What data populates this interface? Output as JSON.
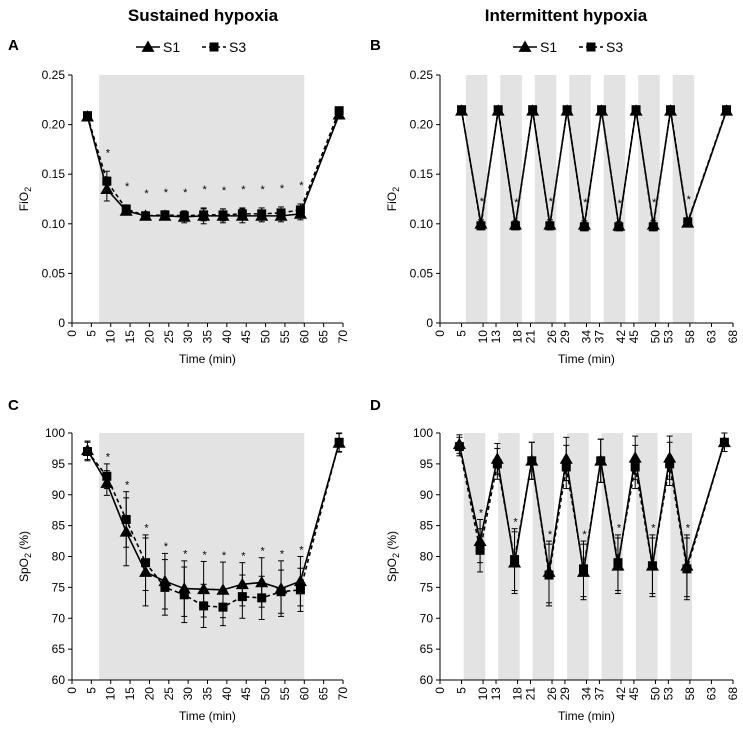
{
  "titles": {
    "left": "Sustained hypoxia",
    "right": "Intermittent hypoxia"
  },
  "colors": {
    "shade": "#e3e3e3",
    "line": "#000000"
  },
  "chart_data": [
    {
      "id": "A",
      "letter": "A",
      "type": "line",
      "title": "",
      "xlabel": "Time (min)",
      "ylabel_main": "FiO",
      "ylabel_sub": "2",
      "xlim": [
        0,
        70
      ],
      "ylim": [
        0,
        0.25
      ],
      "xticks": [
        0,
        5,
        10,
        15,
        20,
        25,
        30,
        35,
        40,
        45,
        50,
        55,
        60,
        65,
        70
      ],
      "yticks": [
        0,
        0.05,
        0.1,
        0.15,
        0.2,
        0.25
      ],
      "ytick_labels": [
        "0",
        "0.05",
        "0.10",
        "0.15",
        "0.20",
        "0.25"
      ],
      "shaded": [
        [
          7,
          60
        ]
      ],
      "legend": [
        "S1",
        "S3"
      ],
      "star_level_offset": 0.018,
      "series": [
        {
          "name": "S1",
          "marker": "triangle",
          "dashed": false,
          "x": [
            4,
            9,
            14,
            19,
            24,
            29,
            34,
            39,
            44,
            49,
            54,
            59,
            69
          ],
          "y": [
            0.208,
            0.135,
            0.113,
            0.108,
            0.108,
            0.107,
            0.108,
            0.108,
            0.108,
            0.108,
            0.108,
            0.11,
            0.21
          ],
          "err": [
            0.004,
            0.012,
            0.004,
            0.004,
            0.004,
            0.006,
            0.008,
            0.007,
            0.007,
            0.006,
            0.006,
            0.006,
            0.004
          ]
        },
        {
          "name": "S3",
          "marker": "square",
          "dashed": true,
          "x": [
            4,
            9,
            14,
            19,
            24,
            29,
            34,
            39,
            44,
            49,
            54,
            59,
            69
          ],
          "y": [
            0.209,
            0.143,
            0.115,
            0.108,
            0.109,
            0.108,
            0.109,
            0.109,
            0.11,
            0.11,
            0.111,
            0.114,
            0.214
          ],
          "err": [
            0.003,
            0.01,
            0.004,
            0.004,
            0.004,
            0.005,
            0.006,
            0.006,
            0.006,
            0.006,
            0.006,
            0.006,
            0.003
          ]
        }
      ],
      "stars": [
        9,
        14,
        19,
        24,
        29,
        34,
        39,
        44,
        49,
        54,
        59
      ]
    },
    {
      "id": "B",
      "letter": "B",
      "type": "line",
      "title": "",
      "xlabel": "Time (min)",
      "ylabel_main": "FiO",
      "ylabel_sub": "2",
      "xlim": [
        0,
        68
      ],
      "ylim": [
        0,
        0.25
      ],
      "xticks": [
        0,
        5,
        10,
        13,
        18,
        21,
        26,
        29,
        34,
        37,
        42,
        45,
        50,
        53,
        58,
        63,
        68
      ],
      "yticks": [
        0,
        0.05,
        0.1,
        0.15,
        0.2,
        0.25
      ],
      "ytick_labels": [
        "0",
        "0.05",
        "0.10",
        "0.15",
        "0.20",
        "0.25"
      ],
      "shaded": [
        [
          6,
          11
        ],
        [
          14,
          19
        ],
        [
          22,
          27
        ],
        [
          30,
          35
        ],
        [
          38,
          43
        ],
        [
          46,
          51
        ],
        [
          54,
          59
        ]
      ],
      "legend": [
        "S1",
        "S3"
      ],
      "star_level_offset": 0.018,
      "series": [
        {
          "name": "S1",
          "marker": "triangle",
          "dashed": false,
          "x": [
            5,
            9.5,
            13.5,
            17.5,
            21.5,
            25.5,
            29.5,
            33.5,
            37.5,
            41.5,
            45.5,
            49.5,
            53.5,
            57.5,
            66.5
          ],
          "y": [
            0.214,
            0.1,
            0.214,
            0.099,
            0.214,
            0.099,
            0.214,
            0.099,
            0.214,
            0.098,
            0.214,
            0.099,
            0.214,
            0.101,
            0.214
          ],
          "err": [
            0.002,
            0.004,
            0.002,
            0.004,
            0.002,
            0.005,
            0.002,
            0.004,
            0.002,
            0.004,
            0.002,
            0.004,
            0.002,
            0.004,
            0.002
          ]
        },
        {
          "name": "S3",
          "marker": "square",
          "dashed": true,
          "x": [
            5,
            9.5,
            13.5,
            17.5,
            21.5,
            25.5,
            29.5,
            33.5,
            37.5,
            41.5,
            45.5,
            49.5,
            53.5,
            57.5,
            66.5
          ],
          "y": [
            0.215,
            0.098,
            0.215,
            0.098,
            0.215,
            0.098,
            0.215,
            0.097,
            0.215,
            0.097,
            0.215,
            0.097,
            0.215,
            0.102,
            0.215
          ],
          "err": [
            0.002,
            0.004,
            0.002,
            0.004,
            0.002,
            0.004,
            0.002,
            0.004,
            0.002,
            0.004,
            0.002,
            0.004,
            0.002,
            0.004,
            0.002
          ]
        }
      ],
      "stars": [
        9.5,
        17.5,
        25.5,
        33.5,
        41.5,
        49.5,
        57.5
      ]
    },
    {
      "id": "C",
      "letter": "C",
      "type": "line",
      "title": "",
      "xlabel": "Time (min)",
      "ylabel_main": "SpO",
      "ylabel_sub": "2",
      "ylabel_tail": " (%)",
      "xlim": [
        0,
        70
      ],
      "ylim": [
        60,
        100
      ],
      "xticks": [
        0,
        5,
        10,
        15,
        20,
        25,
        30,
        35,
        40,
        45,
        50,
        55,
        60,
        65,
        70
      ],
      "yticks": [
        60,
        65,
        70,
        75,
        80,
        85,
        90,
        95,
        100
      ],
      "ytick_labels": [
        "60",
        "65",
        "70",
        "75",
        "80",
        "85",
        "90",
        "95",
        "100"
      ],
      "shaded": [
        [
          7,
          60
        ]
      ],
      "legend": [],
      "star_level_offset": 1.0,
      "series": [
        {
          "name": "S1",
          "marker": "triangle",
          "dashed": false,
          "x": [
            4,
            9,
            14,
            19,
            24,
            29,
            34,
            39,
            44,
            49,
            54,
            59,
            69
          ],
          "y": [
            97.2,
            91.9,
            84.0,
            77.5,
            76.0,
            74.8,
            74.7,
            74.6,
            75.5,
            75.8,
            74.8,
            76.0,
            98.4
          ],
          "err": [
            1.5,
            2.0,
            5.5,
            5.5,
            4.5,
            4.5,
            4.5,
            4.5,
            3.5,
            4.0,
            4.5,
            4.0,
            1.5
          ]
        },
        {
          "name": "S3",
          "marker": "square",
          "dashed": true,
          "x": [
            4,
            9,
            14,
            19,
            24,
            29,
            34,
            39,
            44,
            49,
            54,
            59,
            69
          ],
          "y": [
            97.0,
            93.0,
            86.0,
            79.0,
            75.0,
            73.8,
            72.0,
            71.8,
            73.5,
            73.3,
            74.3,
            74.6,
            98.5
          ],
          "err": [
            1.5,
            2.0,
            4.5,
            4.5,
            4.5,
            4.5,
            3.5,
            3.0,
            3.5,
            3.5,
            3.5,
            3.5,
            1.5
          ]
        }
      ],
      "stars": [
        9,
        14,
        19,
        24,
        29,
        34,
        39,
        44,
        49,
        54,
        59
      ]
    },
    {
      "id": "D",
      "letter": "D",
      "type": "line",
      "title": "",
      "xlabel": "Time (min)",
      "ylabel_main": "SpO",
      "ylabel_sub": "2",
      "ylabel_tail": " (%)",
      "xlim": [
        0,
        68
      ],
      "ylim": [
        60,
        100
      ],
      "xticks": [
        0,
        5,
        10,
        13,
        18,
        21,
        26,
        29,
        34,
        37,
        42,
        45,
        50,
        53,
        58,
        63,
        68
      ],
      "yticks": [
        60,
        65,
        70,
        75,
        80,
        85,
        90,
        95,
        100
      ],
      "ytick_labels": [
        "60",
        "65",
        "70",
        "75",
        "80",
        "85",
        "90",
        "95",
        "100"
      ],
      "shaded": [
        [
          5.5,
          10.5
        ],
        [
          13.5,
          18.5
        ],
        [
          21.5,
          26.5
        ],
        [
          29.5,
          34.5
        ],
        [
          37.5,
          42.5
        ],
        [
          45.5,
          50.5
        ],
        [
          53.5,
          58.5
        ]
      ],
      "legend": [],
      "star_level_offset": 1.0,
      "series": [
        {
          "name": "S1",
          "marker": "triangle",
          "dashed": false,
          "x": [
            4.5,
            9.3,
            13.3,
            17.3,
            21.3,
            25.3,
            29.3,
            33.3,
            37.3,
            41.3,
            45.3,
            49.3,
            53.3,
            57.3,
            66
          ],
          "y": [
            98.2,
            82.5,
            95.8,
            79.0,
            95.5,
            77.5,
            95.8,
            77.5,
            95.5,
            78.5,
            96.0,
            78.5,
            96.0,
            78.5,
            98.5
          ],
          "err": [
            1.5,
            3.5,
            2.5,
            5.0,
            3.0,
            5.0,
            3.5,
            4.5,
            3.5,
            4.5,
            3.5,
            5.0,
            3.5,
            5.0,
            1.5
          ]
        },
        {
          "name": "S3",
          "marker": "square",
          "dashed": true,
          "x": [
            4.5,
            9.3,
            13.3,
            17.3,
            21.3,
            25.3,
            29.3,
            33.3,
            37.3,
            41.3,
            45.3,
            49.3,
            53.3,
            57.3,
            66
          ],
          "y": [
            97.8,
            81.0,
            95.0,
            79.5,
            95.5,
            77.0,
            94.5,
            78.0,
            95.5,
            79.0,
            94.5,
            78.5,
            95.0,
            78.0,
            98.5
          ],
          "err": [
            1.5,
            3.5,
            2.5,
            5.0,
            3.0,
            5.0,
            3.5,
            4.5,
            3.5,
            4.5,
            3.5,
            4.5,
            3.5,
            5.0,
            1.5
          ]
        }
      ],
      "stars": [
        9.3,
        17.3,
        25.3,
        33.3,
        41.3,
        49.3,
        57.3
      ]
    }
  ]
}
